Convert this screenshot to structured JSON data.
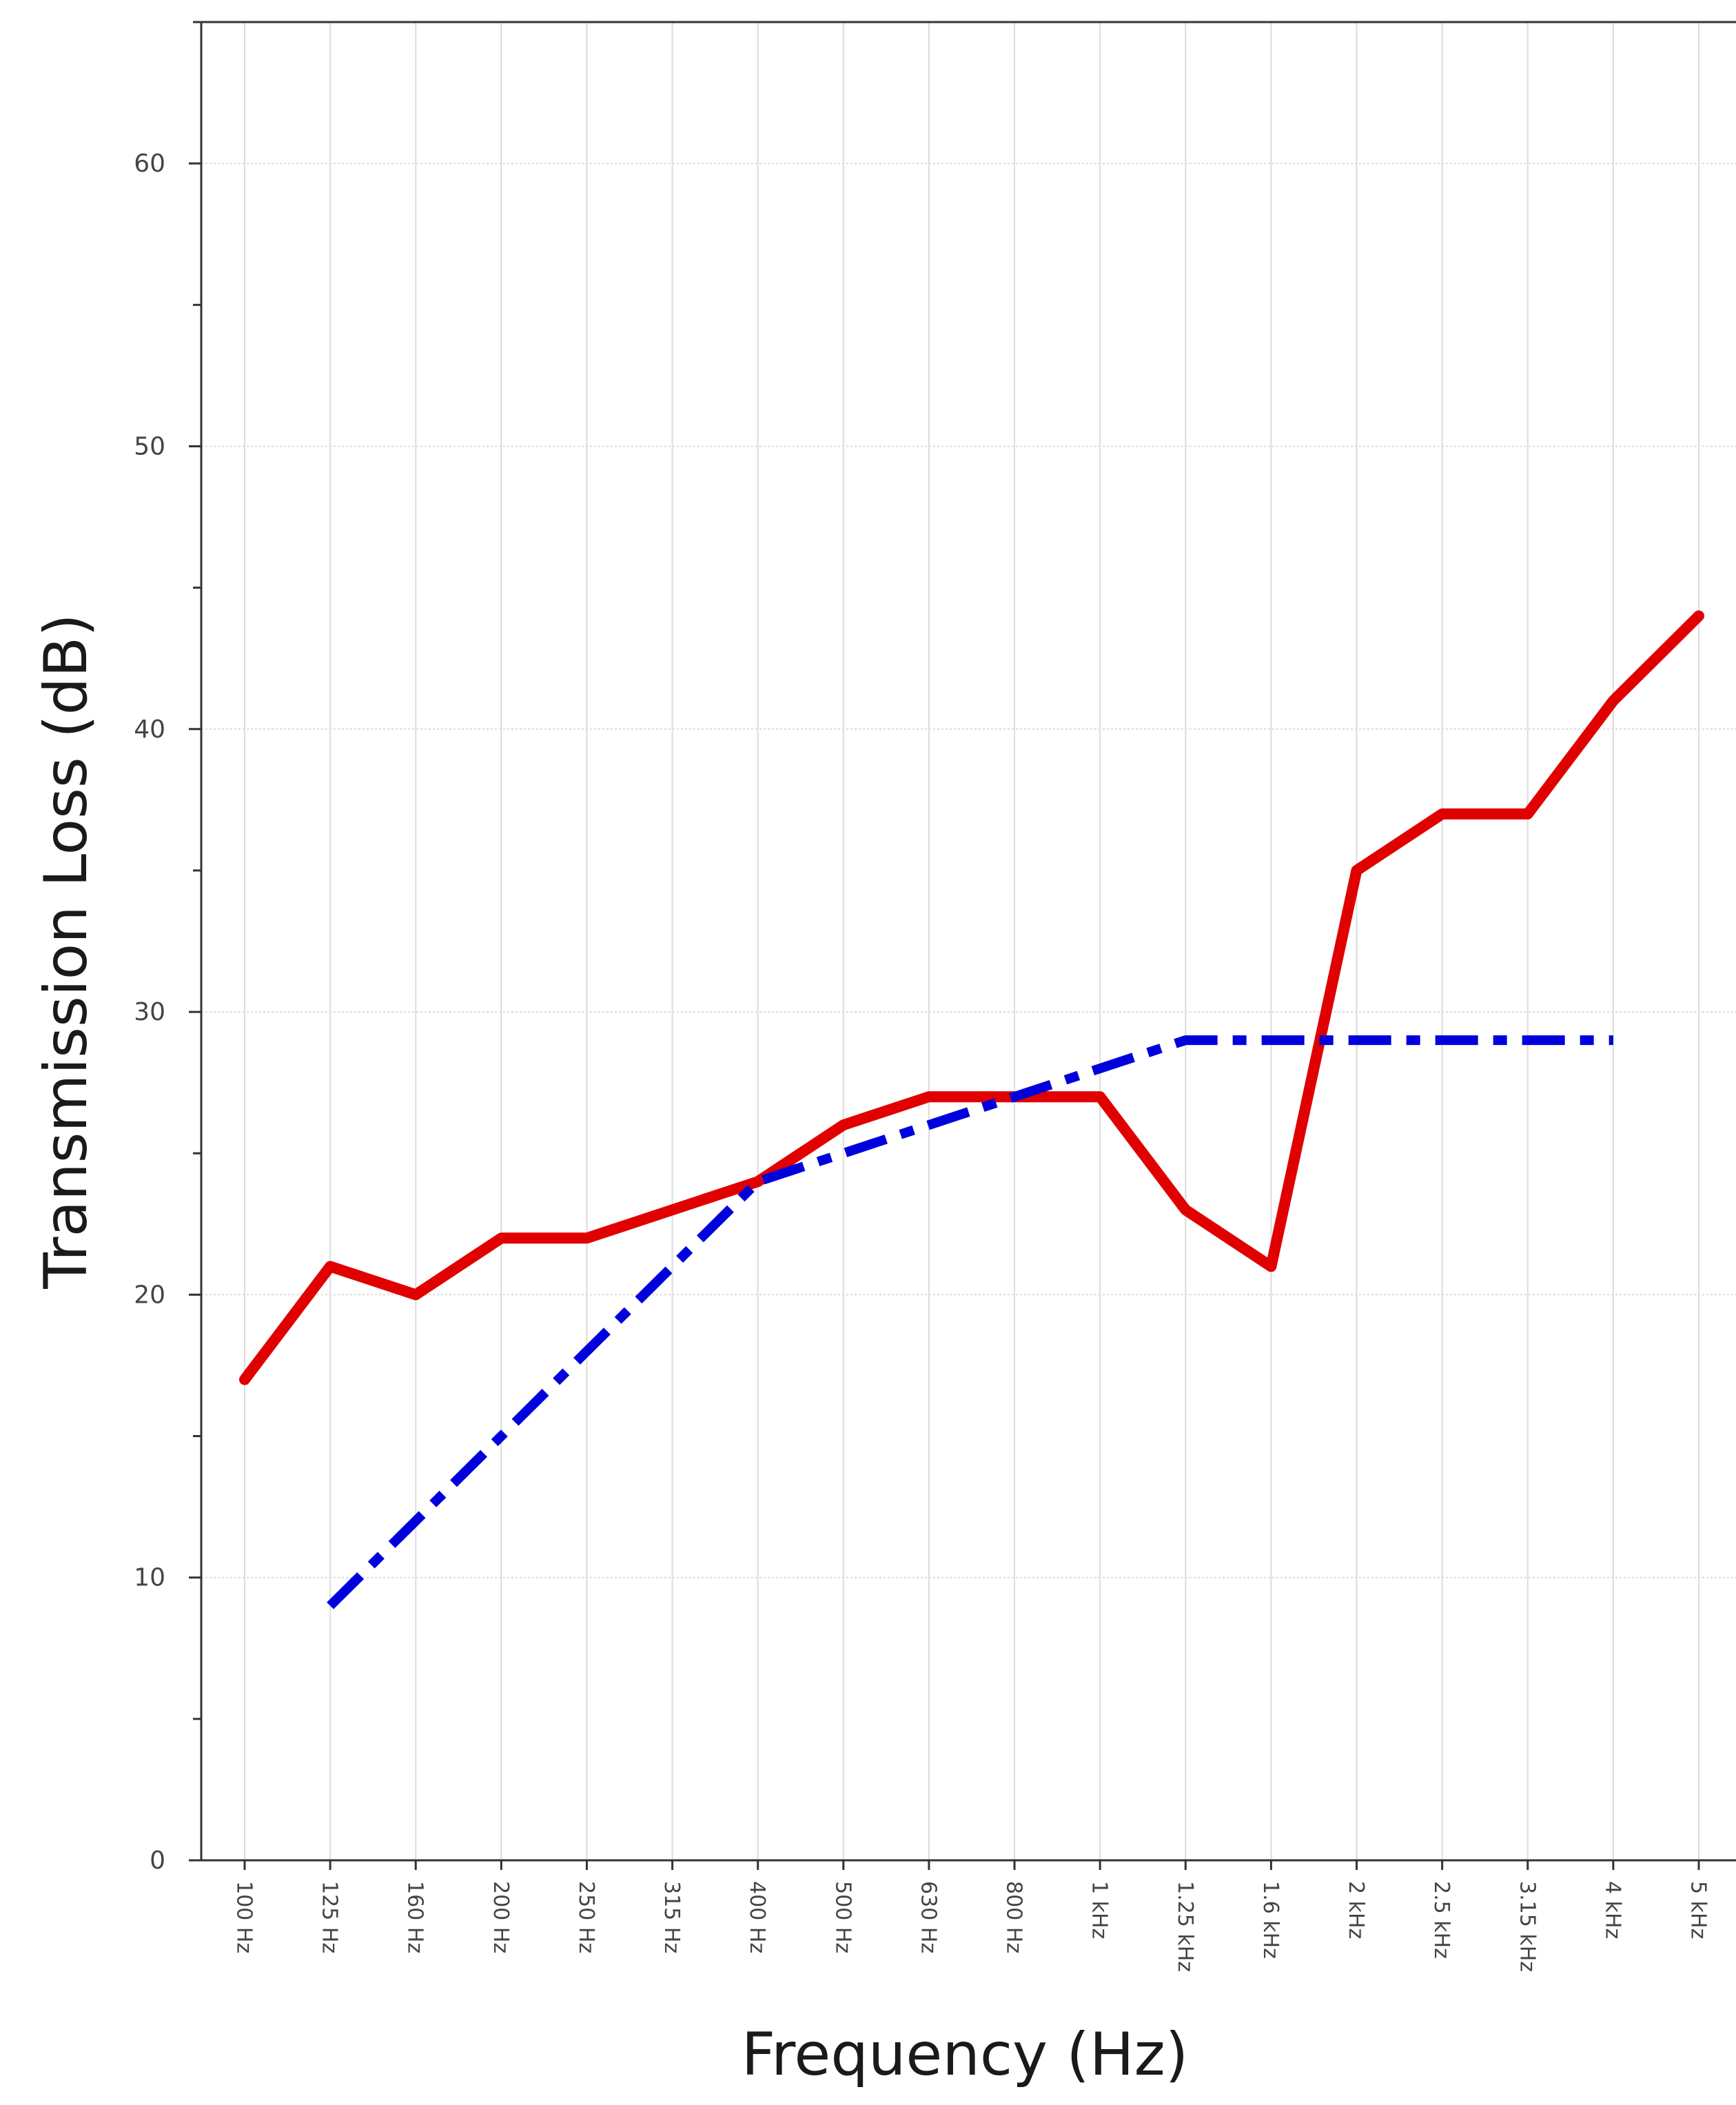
{
  "chart_data": {
    "type": "line",
    "xlabel": "Frequency (Hz)",
    "ylabel": "Transmission Loss (dB)",
    "title": "",
    "categories": [
      "100 Hz",
      "125 Hz",
      "160 Hz",
      "200 Hz",
      "250 Hz",
      "315 Hz",
      "400 Hz",
      "500 Hz",
      "630 Hz",
      "800 Hz",
      "1 kHz",
      "1.25 kHz",
      "1.6 kHz",
      "2 kHz",
      "2.5 kHz",
      "3.15 kHz",
      "4 kHz",
      "5 kHz"
    ],
    "ylim": [
      0,
      65
    ],
    "yticks": [
      0,
      10,
      20,
      30,
      40,
      50,
      60
    ],
    "grid": true,
    "series": [
      {
        "color": "#e00000",
        "style": "solid",
        "values": [
          17,
          21,
          20,
          22,
          22,
          23,
          24,
          26,
          27,
          27,
          27,
          23,
          21,
          35,
          37,
          37,
          41,
          44
        ]
      },
      {
        "color": "#0000dd",
        "style": "dash-dot",
        "values": [
          null,
          9,
          12,
          15,
          18,
          21,
          24,
          25,
          26,
          27,
          28,
          29,
          29,
          29,
          29,
          29,
          29,
          null
        ]
      }
    ]
  }
}
